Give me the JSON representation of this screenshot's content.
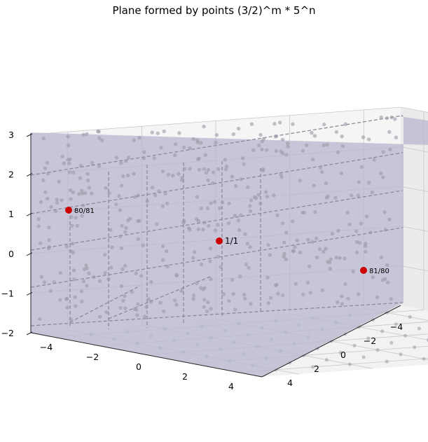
{
  "chart_data": {
    "type": "scatter",
    "title": "Plane formed by points (3/2)^m * 5^n",
    "xlabel": "",
    "ylabel": "",
    "zlabel": "",
    "x_ticks": [
      "−4",
      "−2",
      "0",
      "2",
      "4"
    ],
    "y_ticks": [
      "−4",
      "−2",
      "0",
      "2",
      "4"
    ],
    "z_ticks": [
      "−2",
      "−1",
      "0",
      "1",
      "2",
      "3"
    ],
    "xlim": [
      -5,
      5
    ],
    "ylim": [
      -5,
      5
    ],
    "zlim": [
      -2,
      3
    ],
    "grid": true,
    "plane_color": "#b8b8cf",
    "lattice_point_color": "#9a9aa6",
    "highlight_color": "#cc0000",
    "highlighted_points": [
      {
        "label": "1/1",
        "x": 0,
        "y": 0,
        "z": 0.2
      },
      {
        "label": "80/81",
        "x": -5,
        "y": 0,
        "z": 1.1
      },
      {
        "label": "81/80",
        "x": 0,
        "y": -5,
        "z": -0.6
      }
    ]
  }
}
